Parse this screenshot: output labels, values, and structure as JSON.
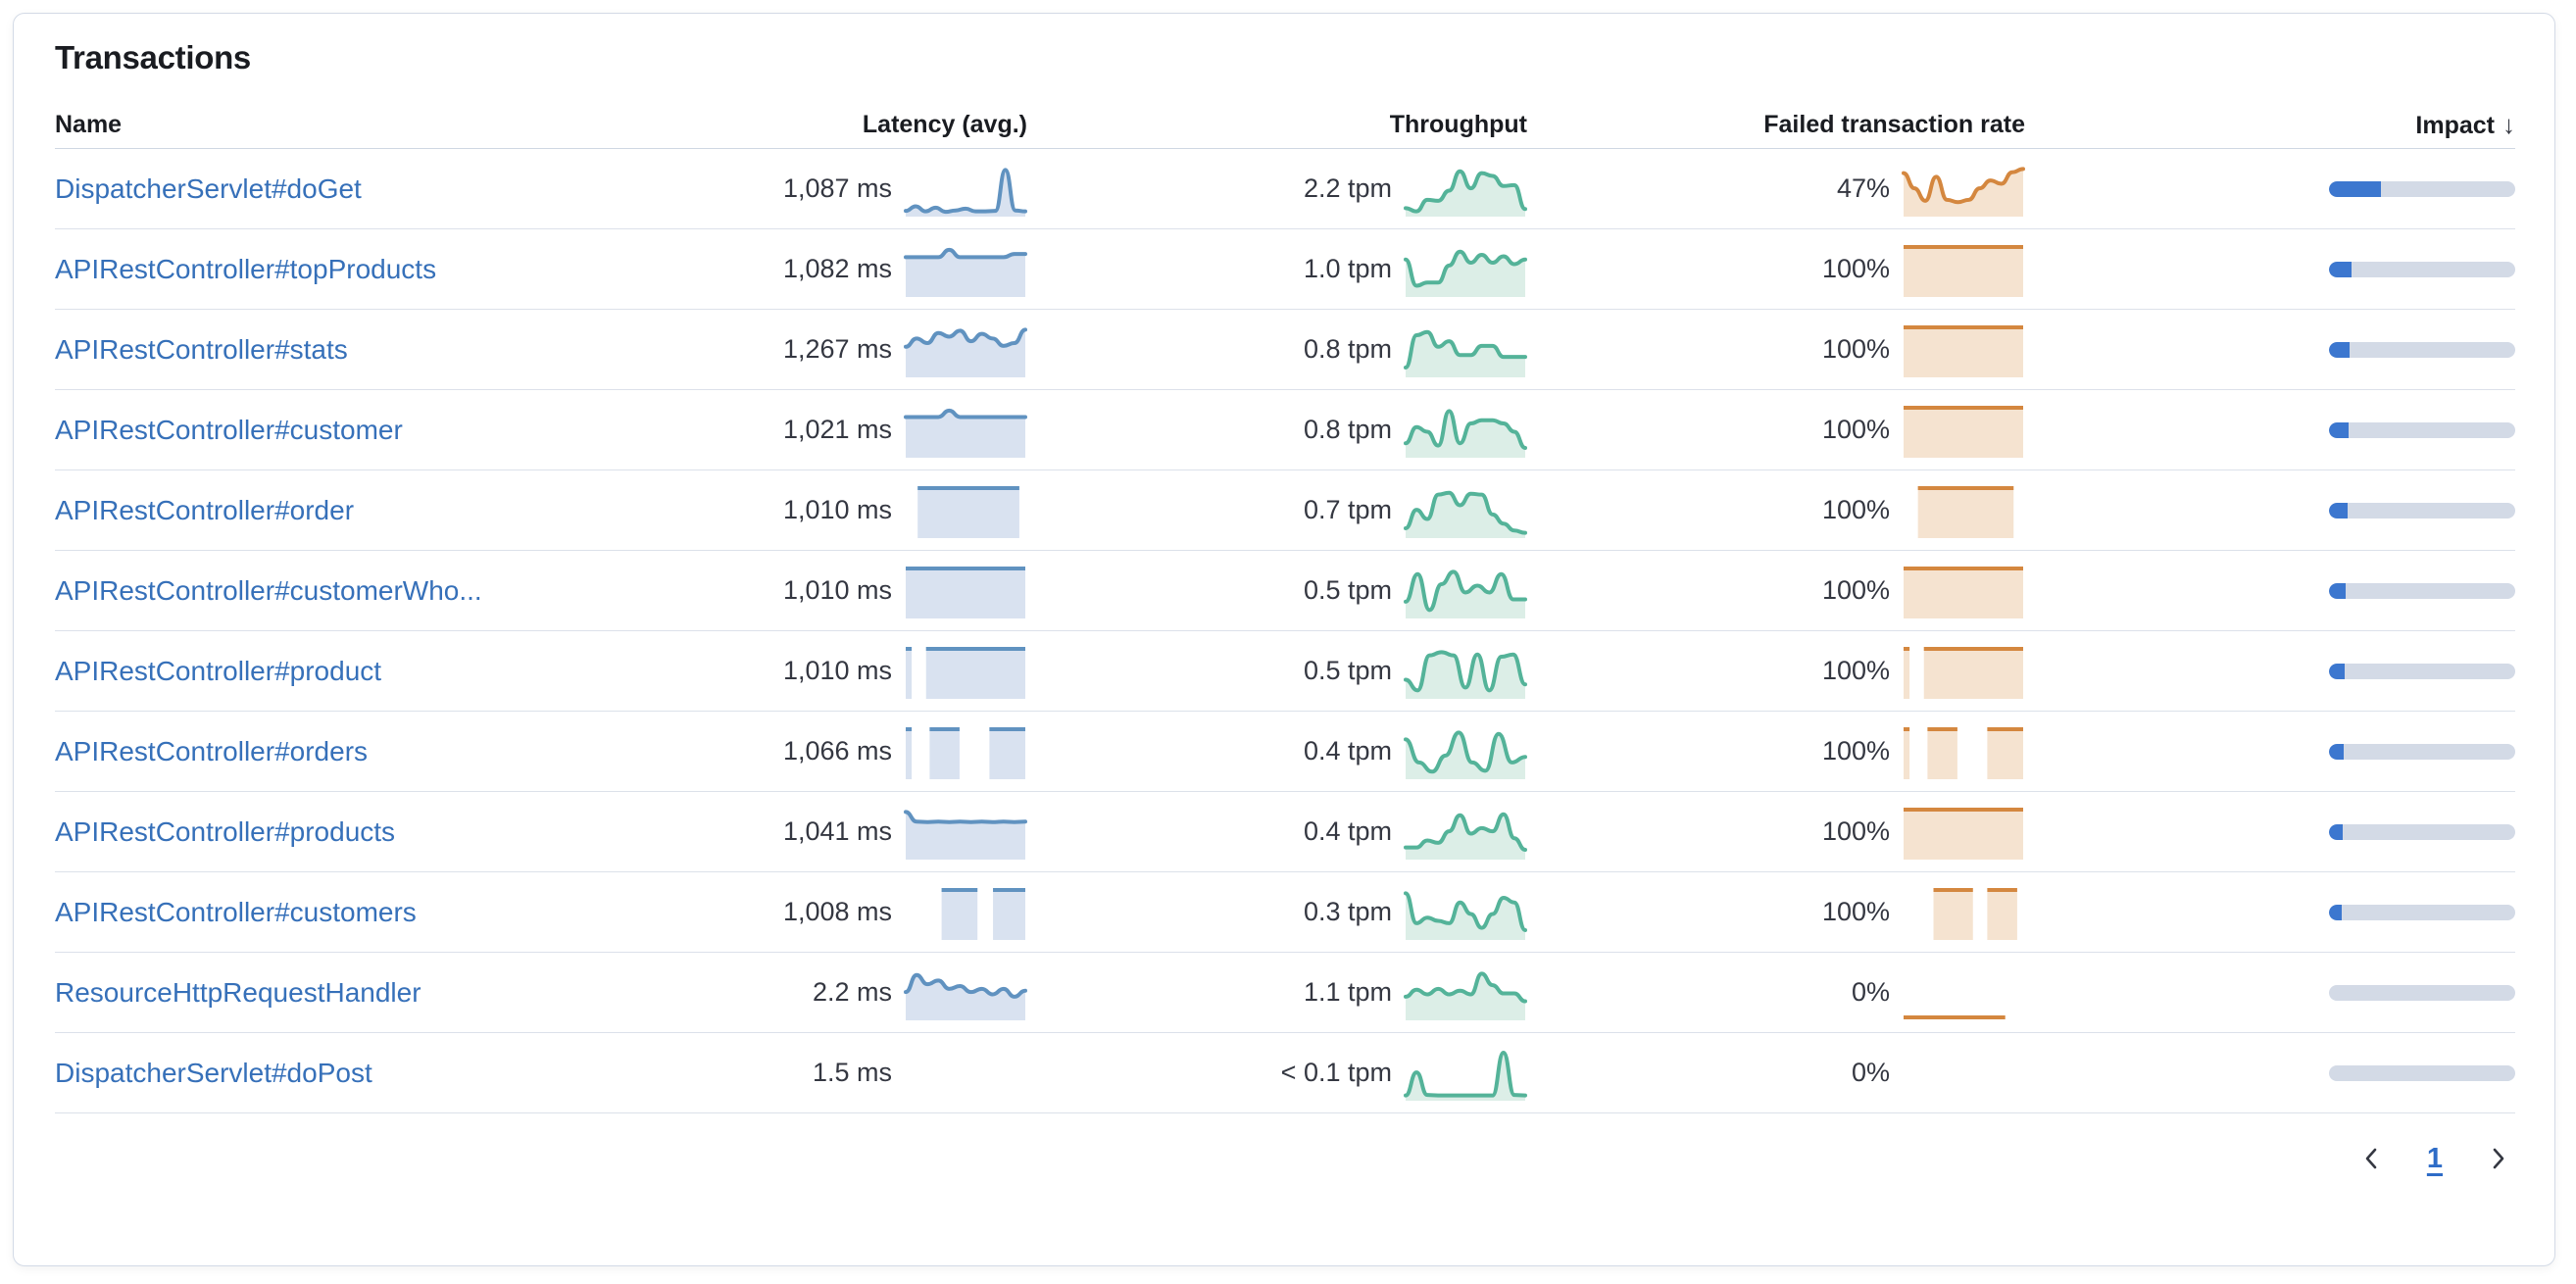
{
  "panel": {
    "title": "Transactions"
  },
  "table": {
    "columns": [
      {
        "key": "name",
        "label": "Name"
      },
      {
        "key": "latency",
        "label": "Latency (avg.)"
      },
      {
        "key": "throughput",
        "label": "Throughput"
      },
      {
        "key": "failed_rate",
        "label": "Failed transaction rate"
      },
      {
        "key": "impact",
        "label": "Impact",
        "sort": "desc",
        "sort_icon": "↓"
      }
    ],
    "rows": [
      {
        "name": "DispatcherServlet#doGet",
        "latency": "1,087 ms",
        "throughput": "2.2 tpm",
        "failed_rate": "47%",
        "impact_pct": 28,
        "latency_spark": {
          "type": "area",
          "palette": "latency",
          "points": [
            0.06,
            0.16,
            0.05,
            0.13,
            0.04,
            0.07,
            0.11,
            0.05,
            0.05,
            0.06,
            0.95,
            0.07,
            0.05
          ]
        },
        "throughput_spark": {
          "type": "area",
          "palette": "throughput",
          "points": [
            0.12,
            0.05,
            0.3,
            0.28,
            0.5,
            0.92,
            0.55,
            0.88,
            0.82,
            0.6,
            0.62,
            0.1
          ]
        },
        "failed_spark": {
          "type": "area",
          "palette": "failed",
          "points": [
            0.88,
            0.55,
            0.28,
            0.8,
            0.3,
            0.25,
            0.3,
            0.55,
            0.72,
            0.65,
            0.9,
            0.97
          ]
        }
      },
      {
        "name": "APIRestController#topProducts",
        "latency": "1,082 ms",
        "throughput": "1.0 tpm",
        "failed_rate": "100%",
        "impact_pct": 12,
        "latency_spark": {
          "type": "area",
          "palette": "latency",
          "points": [
            0.8,
            0.8,
            0.8,
            0.8,
            0.96,
            0.8,
            0.8,
            0.8,
            0.8,
            0.8,
            0.87,
            0.87
          ]
        },
        "throughput_spark": {
          "type": "area",
          "palette": "throughput",
          "points": [
            0.75,
            0.18,
            0.25,
            0.25,
            0.62,
            0.92,
            0.68,
            0.85,
            0.68,
            0.82,
            0.65,
            0.75
          ]
        },
        "failed_spark": {
          "type": "blocks",
          "palette": "failed",
          "segments": [
            [
              0,
              1
            ]
          ]
        }
      },
      {
        "name": "APIRestController#stats",
        "latency": "1,267 ms",
        "throughput": "0.8 tpm",
        "failed_rate": "100%",
        "impact_pct": 11,
        "latency_spark": {
          "type": "area",
          "palette": "latency",
          "points": [
            0.6,
            0.78,
            0.68,
            0.9,
            0.82,
            0.95,
            0.72,
            0.88,
            0.78,
            0.62,
            0.68,
            0.97
          ]
        },
        "throughput_spark": {
          "type": "area",
          "palette": "throughput",
          "points": [
            0.15,
            0.85,
            0.92,
            0.6,
            0.72,
            0.42,
            0.42,
            0.62,
            0.62,
            0.38,
            0.38,
            0.38
          ]
        },
        "failed_spark": {
          "type": "blocks",
          "palette": "failed",
          "segments": [
            [
              0,
              1
            ]
          ]
        }
      },
      {
        "name": "APIRestController#customer",
        "latency": "1,021 ms",
        "throughput": "0.8 tpm",
        "failed_rate": "100%",
        "impact_pct": 10.5,
        "latency_spark": {
          "type": "area",
          "palette": "latency",
          "points": [
            0.82,
            0.82,
            0.82,
            0.82,
            0.96,
            0.82,
            0.82,
            0.82,
            0.82,
            0.82,
            0.82,
            0.82
          ]
        },
        "throughput_spark": {
          "type": "area",
          "palette": "throughput",
          "points": [
            0.25,
            0.6,
            0.5,
            0.2,
            0.95,
            0.25,
            0.68,
            0.75,
            0.75,
            0.68,
            0.5,
            0.15
          ]
        },
        "failed_spark": {
          "type": "blocks",
          "palette": "failed",
          "segments": [
            [
              0,
              1
            ]
          ]
        }
      },
      {
        "name": "APIRestController#order",
        "latency": "1,010 ms",
        "throughput": "0.7 tpm",
        "failed_rate": "100%",
        "impact_pct": 10,
        "latency_spark": {
          "type": "blocks",
          "palette": "latency",
          "segments": [
            [
              0.1,
              0.95
            ]
          ]
        },
        "throughput_spark": {
          "type": "area",
          "palette": "throughput",
          "points": [
            0.15,
            0.55,
            0.35,
            0.88,
            0.92,
            0.65,
            0.9,
            0.88,
            0.45,
            0.25,
            0.1,
            0.05
          ]
        },
        "failed_spark": {
          "type": "blocks",
          "palette": "failed",
          "segments": [
            [
              0.12,
              0.92
            ]
          ]
        }
      },
      {
        "name": "APIRestController#customerWho...",
        "latency": "1,010 ms",
        "throughput": "0.5 tpm",
        "failed_rate": "100%",
        "impact_pct": 9,
        "latency_spark": {
          "type": "blocks",
          "palette": "latency",
          "segments": [
            [
              0,
              1
            ]
          ]
        },
        "throughput_spark": {
          "type": "area",
          "palette": "throughput",
          "points": [
            0.3,
            0.9,
            0.12,
            0.68,
            0.95,
            0.5,
            0.65,
            0.5,
            0.9,
            0.35,
            0.35
          ]
        },
        "failed_spark": {
          "type": "blocks",
          "palette": "failed",
          "segments": [
            [
              0,
              1
            ]
          ]
        }
      },
      {
        "name": "APIRestController#product",
        "latency": "1,010 ms",
        "throughput": "0.5 tpm",
        "failed_rate": "100%",
        "impact_pct": 8.5,
        "latency_spark": {
          "type": "blocks",
          "palette": "latency",
          "segments": [
            [
              0,
              0.05
            ],
            [
              0.17,
              1
            ]
          ]
        },
        "throughput_spark": {
          "type": "area",
          "palette": "throughput",
          "points": [
            0.35,
            0.12,
            0.88,
            0.95,
            0.88,
            0.18,
            0.9,
            0.12,
            0.85,
            0.9,
            0.25
          ]
        },
        "failed_spark": {
          "type": "blocks",
          "palette": "failed",
          "segments": [
            [
              0,
              0.05
            ],
            [
              0.17,
              1
            ]
          ]
        }
      },
      {
        "name": "APIRestController#orders",
        "latency": "1,066 ms",
        "throughput": "0.4 tpm",
        "failed_rate": "100%",
        "impact_pct": 8,
        "latency_spark": {
          "type": "blocks",
          "palette": "latency",
          "segments": [
            [
              0,
              0.05
            ],
            [
              0.2,
              0.45
            ],
            [
              0.7,
              1
            ]
          ]
        },
        "throughput_spark": {
          "type": "area",
          "palette": "throughput",
          "points": [
            0.8,
            0.3,
            0.1,
            0.45,
            0.95,
            0.3,
            0.12,
            0.92,
            0.3,
            0.42
          ]
        },
        "failed_spark": {
          "type": "blocks",
          "palette": "failed",
          "segments": [
            [
              0,
              0.05
            ],
            [
              0.2,
              0.45
            ],
            [
              0.7,
              1
            ]
          ]
        }
      },
      {
        "name": "APIRestController#products",
        "latency": "1,041 ms",
        "throughput": "0.4 tpm",
        "failed_rate": "100%",
        "impact_pct": 7.5,
        "latency_spark": {
          "type": "area",
          "palette": "latency",
          "points": [
            0.97,
            0.76,
            0.75,
            0.76,
            0.75,
            0.76,
            0.75,
            0.76,
            0.75,
            0.76,
            0.75,
            0.76
          ]
        },
        "throughput_spark": {
          "type": "area",
          "palette": "throughput",
          "points": [
            0.2,
            0.2,
            0.35,
            0.3,
            0.55,
            0.9,
            0.5,
            0.62,
            0.55,
            0.92,
            0.4,
            0.15
          ]
        },
        "failed_spark": {
          "type": "blocks",
          "palette": "failed",
          "segments": [
            [
              0,
              1
            ]
          ]
        }
      },
      {
        "name": "APIRestController#customers",
        "latency": "1,008 ms",
        "throughput": "0.3 tpm",
        "failed_rate": "100%",
        "impact_pct": 7,
        "latency_spark": {
          "type": "blocks",
          "palette": "latency",
          "segments": [
            [
              0.3,
              0.6
            ],
            [
              0.73,
              1
            ]
          ]
        },
        "throughput_spark": {
          "type": "area",
          "palette": "throughput",
          "points": [
            0.95,
            0.3,
            0.42,
            0.35,
            0.3,
            0.75,
            0.5,
            0.2,
            0.5,
            0.85,
            0.75,
            0.15
          ]
        },
        "failed_spark": {
          "type": "blocks",
          "palette": "failed",
          "segments": [
            [
              0.25,
              0.58
            ],
            [
              0.7,
              0.95
            ]
          ]
        }
      },
      {
        "name": "ResourceHttpRequestHandler",
        "latency": "2.2 ms",
        "throughput": "1.1 tpm",
        "failed_rate": "0%",
        "impact_pct": 0,
        "latency_spark": {
          "type": "area",
          "palette": "latency",
          "points": [
            0.55,
            0.92,
            0.72,
            0.8,
            0.62,
            0.68,
            0.55,
            0.62,
            0.5,
            0.62,
            0.45,
            0.58
          ]
        },
        "throughput_spark": {
          "type": "area",
          "palette": "throughput",
          "points": [
            0.45,
            0.6,
            0.5,
            0.62,
            0.5,
            0.58,
            0.5,
            0.95,
            0.7,
            0.52,
            0.52,
            0.35
          ]
        },
        "failed_spark": {
          "type": "baseline",
          "palette": "failed",
          "span": 0.85
        }
      },
      {
        "name": "DispatcherServlet#doPost",
        "latency": "1.5 ms",
        "throughput": "< 0.1 tpm",
        "failed_rate": "0%",
        "impact_pct": 0,
        "latency_spark": null,
        "throughput_spark": {
          "type": "area",
          "palette": "throughput",
          "points": [
            0.05,
            0.55,
            0.06,
            0.05,
            0.05,
            0.05,
            0.05,
            0.05,
            0.05,
            0.98,
            0.06,
            0.05
          ]
        },
        "failed_spark": null
      }
    ]
  },
  "pagination": {
    "current_page": "1",
    "prev_icon": "chevron-left",
    "next_icon": "chevron-right"
  },
  "colors": {
    "link": "#3670B9",
    "text": "#343741",
    "header_text": "#1A1C21",
    "latency_line": "#6092C0",
    "latency_fill": "#D9E2F0",
    "throughput_line": "#54B399",
    "throughput_fill": "#DCEEE7",
    "failed_line": "#D4873F",
    "failed_fill": "#F5E3D0",
    "impact_fill": "#3C77CF",
    "impact_track": "#D3DAE6"
  }
}
